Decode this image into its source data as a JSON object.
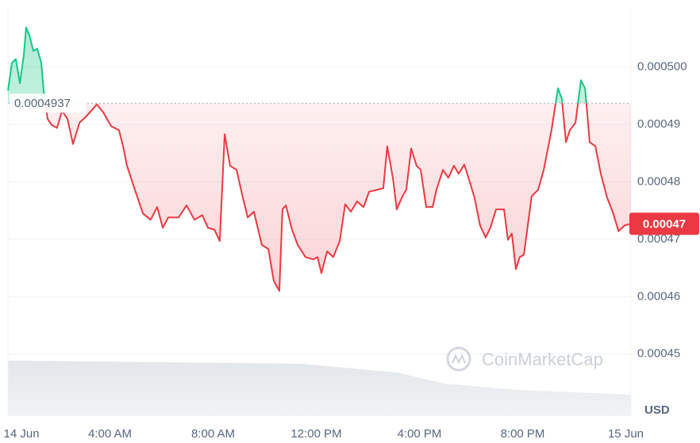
{
  "chart_data": {
    "type": "line",
    "x": [
      0.05,
      0.2,
      0.35,
      0.51,
      0.66,
      0.75,
      0.88,
      1.03,
      1.18,
      1.34,
      1.43,
      1.58,
      1.74,
      1.95,
      2.14,
      2.35,
      2.57,
      2.82,
      3.06,
      3.28,
      3.49,
      3.74,
      4.05,
      4.35,
      4.51,
      4.66,
      4.97,
      5.28,
      5.58,
      5.83,
      6.05,
      6.26,
      6.66,
      6.97,
      7.28,
      7.58,
      7.8,
      8.05,
      8.26,
      8.45,
      8.66,
      8.91,
      9.12,
      9.34,
      9.58,
      9.89,
      10.14,
      10.35,
      10.57,
      10.69,
      10.82,
      11.06,
      11.28,
      11.58,
      11.89,
      12.05,
      12.2,
      12.42,
      12.66,
      12.91,
      13.12,
      13.34,
      13.58,
      13.83,
      14.05,
      14.35,
      14.6,
      14.75,
      14.97,
      15.12,
      15.34,
      15.49,
      15.68,
      15.89,
      16.05,
      16.26,
      16.51,
      16.66,
      16.91,
      17.12,
      17.34,
      17.52,
      17.74,
      17.95,
      18.14,
      18.35,
      18.57,
      18.75,
      18.97,
      19.28,
      19.43,
      19.58,
      19.74,
      19.89,
      20.05,
      20.2,
      20.35,
      20.6,
      20.82,
      21.12,
      21.37,
      21.52,
      21.68,
      21.83,
      22.05,
      22.26,
      22.42,
      22.6,
      22.82,
      23.03,
      23.28,
      23.49,
      23.72,
      23.95,
      24.2
    ],
    "series": [
      {
        "color": "#ea3943",
        "up_color": "#16c784",
        "values": [
          0.0004959,
          0.0005007,
          0.0005014,
          0.0004972,
          0.0005021,
          0.0005069,
          0.0005055,
          0.0005028,
          0.0005032,
          0.0005007,
          0.0004959,
          0.000491,
          0.0004899,
          0.0004894,
          0.0004924,
          0.000491,
          0.0004866,
          0.0004903,
          0.0004913,
          0.0004924,
          0.0004935,
          0.0004921,
          0.0004897,
          0.000489,
          0.0004862,
          0.0004828,
          0.0004786,
          0.0004745,
          0.0004734,
          0.0004756,
          0.000472,
          0.0004738,
          0.0004738,
          0.0004759,
          0.0004734,
          0.0004742,
          0.000472,
          0.0004717,
          0.0004697,
          0.0004883,
          0.0004828,
          0.0004821,
          0.0004779,
          0.0004738,
          0.0004748,
          0.000469,
          0.0004683,
          0.0004628,
          0.000461,
          0.0004752,
          0.0004759,
          0.0004717,
          0.000469,
          0.0004669,
          0.0004665,
          0.0004669,
          0.0004641,
          0.0004679,
          0.0004669,
          0.0004697,
          0.0004761,
          0.0004748,
          0.0004766,
          0.0004756,
          0.0004783,
          0.0004786,
          0.0004789,
          0.0004862,
          0.0004807,
          0.0004752,
          0.0004775,
          0.0004786,
          0.0004858,
          0.0004828,
          0.0004821,
          0.0004756,
          0.0004756,
          0.0004786,
          0.0004821,
          0.0004807,
          0.0004828,
          0.0004814,
          0.000483,
          0.00048,
          0.0004772,
          0.0004724,
          0.0004703,
          0.000472,
          0.0004752,
          0.0004752,
          0.0004699,
          0.000471,
          0.0004648,
          0.0004669,
          0.0004673,
          0.0004724,
          0.0004775,
          0.0004786,
          0.0004821,
          0.000489,
          0.0004963,
          0.0004945,
          0.0004869,
          0.000489,
          0.0004903,
          0.0004977,
          0.0004963,
          0.0004869,
          0.0004862,
          0.0004814,
          0.0004772,
          0.0004748,
          0.0004714,
          0.0004724,
          0.0004727
        ]
      }
    ],
    "reference_price": 0.0004937,
    "current_price": {
      "value": 0.0004727,
      "label": "0.00047"
    },
    "xlim": [
      0,
      24.2
    ],
    "ylim": [
      0.0004392,
      0.0005103
    ],
    "xticks": [
      {
        "value": 0,
        "label": "14 Jun"
      },
      {
        "value": 4,
        "label": "4:00 AM"
      },
      {
        "value": 8,
        "label": "8:00 AM"
      },
      {
        "value": 12,
        "label": "12:00 PM"
      },
      {
        "value": 16,
        "label": "4:00 PM"
      },
      {
        "value": 20,
        "label": "8:00 PM"
      },
      {
        "value": 24,
        "label": "15 Jun"
      }
    ],
    "yticks": [
      {
        "value": 0.0005,
        "label": "0.000500"
      },
      0.00049,
      0.00048,
      0.00047,
      0.00046,
      0.00045
    ],
    "unit": "USD",
    "watermark": "CoinMarketCap",
    "grid": true
  }
}
